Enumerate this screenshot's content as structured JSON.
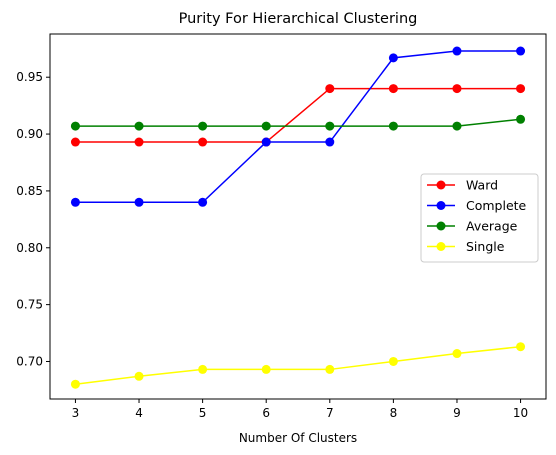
{
  "chart_data": {
    "type": "line",
    "title": "Purity For Hierarchical Clustering",
    "xlabel": "Number Of Clusters",
    "ylabel": "",
    "x": [
      3,
      4,
      5,
      6,
      7,
      8,
      9,
      10
    ],
    "xlim": [
      2.6,
      10.4
    ],
    "ylim": [
      0.667,
      0.988
    ],
    "yticks": [
      "0.70",
      "0.75",
      "0.80",
      "0.85",
      "0.90",
      "0.95"
    ],
    "ytick_values": [
      0.7,
      0.75,
      0.8,
      0.85,
      0.9,
      0.95
    ],
    "xticks": [
      "3",
      "4",
      "5",
      "6",
      "7",
      "8",
      "9",
      "10"
    ],
    "legend_position": "center-right",
    "grid": false,
    "series": [
      {
        "name": "Ward",
        "color": "#ff0000",
        "values": [
          0.893,
          0.893,
          0.893,
          0.893,
          0.94,
          0.94,
          0.94,
          0.94
        ]
      },
      {
        "name": "Complete",
        "color": "#0000ff",
        "values": [
          0.84,
          0.84,
          0.84,
          0.893,
          0.893,
          0.967,
          0.973,
          0.973
        ]
      },
      {
        "name": "Average",
        "color": "#008000",
        "values": [
          0.907,
          0.907,
          0.907,
          0.907,
          0.907,
          0.907,
          0.907,
          0.913
        ]
      },
      {
        "name": "Single",
        "color": "#ffff00",
        "values": [
          0.68,
          0.687,
          0.693,
          0.693,
          0.693,
          0.7,
          0.707,
          0.713
        ]
      }
    ]
  }
}
